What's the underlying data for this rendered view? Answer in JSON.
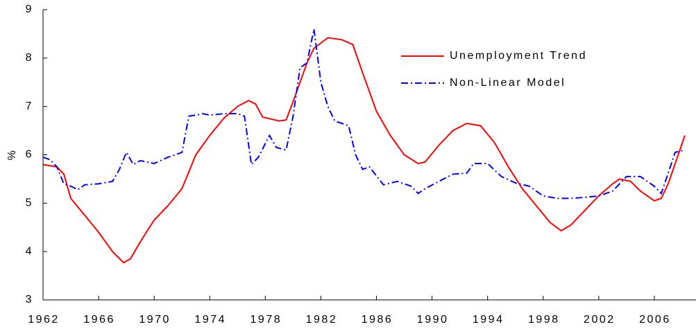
{
  "chart_data": {
    "type": "line",
    "ylabel": "%",
    "xlim": [
      1962,
      2009
    ],
    "xticks": [
      1962,
      1966,
      1970,
      1974,
      1978,
      1982,
      1986,
      1990,
      1994,
      1998,
      2002,
      2006
    ],
    "ylim": [
      3,
      9
    ],
    "yticks": [
      3,
      4,
      5,
      6,
      7,
      8,
      9
    ],
    "legend": "upper right",
    "series": [
      {
        "name": "Unemployment Trend",
        "color": "#ff0000",
        "style": "solid",
        "x": [
          1962,
          1963,
          1963.5,
          1964,
          1965,
          1966,
          1967,
          1967.8,
          1968.3,
          1969,
          1970,
          1971,
          1972,
          1973,
          1974,
          1975,
          1976,
          1976.8,
          1977.3,
          1977.8,
          1979,
          1979.5,
          1980,
          1981,
          1981.5,
          1982.5,
          1983.5,
          1984.3,
          1985,
          1986,
          1987,
          1988,
          1989,
          1989.5,
          1990.5,
          1991.5,
          1992.5,
          1993.5,
          1994.5,
          1995.5,
          1996.5,
          1997.5,
          1998.5,
          1999.3,
          2000,
          2001,
          2002,
          2003,
          2003.5,
          2004.3,
          2005,
          2006,
          2006.5,
          2007,
          2008.2
        ],
        "values": [
          5.8,
          5.75,
          5.6,
          5.1,
          4.75,
          4.4,
          4.0,
          3.77,
          3.85,
          4.2,
          4.65,
          4.95,
          5.3,
          6.0,
          6.4,
          6.75,
          7.0,
          7.12,
          7.05,
          6.78,
          6.7,
          6.72,
          7.1,
          7.9,
          8.2,
          8.42,
          8.38,
          8.28,
          7.7,
          6.9,
          6.4,
          6.0,
          5.82,
          5.85,
          6.2,
          6.5,
          6.65,
          6.6,
          6.25,
          5.75,
          5.3,
          4.95,
          4.6,
          4.43,
          4.55,
          4.85,
          5.15,
          5.4,
          5.5,
          5.45,
          5.25,
          5.05,
          5.1,
          5.4,
          6.4
        ]
      },
      {
        "name": "Non-Linear Model",
        "color": "#0000ff",
        "style": "dashdot",
        "x": [
          1962,
          1962.5,
          1963,
          1963.5,
          1964,
          1964.5,
          1965,
          1966,
          1967,
          1967.5,
          1968,
          1968.5,
          1969,
          1970,
          1971,
          1972,
          1972.5,
          1973,
          1973.5,
          1974,
          1975,
          1976,
          1976.5,
          1977,
          1977.5,
          1978.3,
          1978.8,
          1979.5,
          1980,
          1980.5,
          1981,
          1981.5,
          1982,
          1982.5,
          1983,
          1984,
          1984.5,
          1985,
          1985.5,
          1986.5,
          1987.5,
          1988.5,
          1989,
          1989.5,
          1990.5,
          1991.5,
          1992.5,
          1993,
          1994,
          1995,
          1996,
          1997,
          1998,
          1999,
          2000,
          2001,
          2002,
          2003,
          2004,
          2005,
          2006,
          2006.5,
          2007.5,
          2008.2
        ],
        "values": [
          5.95,
          5.9,
          5.75,
          5.4,
          5.35,
          5.28,
          5.38,
          5.4,
          5.45,
          5.7,
          6.05,
          5.8,
          5.88,
          5.82,
          5.95,
          6.05,
          6.8,
          6.82,
          6.85,
          6.82,
          6.85,
          6.85,
          6.8,
          5.8,
          5.95,
          6.4,
          6.15,
          6.1,
          6.8,
          7.8,
          7.9,
          8.6,
          7.5,
          7.0,
          6.7,
          6.6,
          6.0,
          5.7,
          5.75,
          5.38,
          5.45,
          5.35,
          5.2,
          5.3,
          5.45,
          5.6,
          5.62,
          5.82,
          5.82,
          5.55,
          5.42,
          5.35,
          5.15,
          5.1,
          5.1,
          5.12,
          5.15,
          5.25,
          5.55,
          5.55,
          5.35,
          5.2,
          6.05,
          6.1
        ]
      }
    ]
  }
}
